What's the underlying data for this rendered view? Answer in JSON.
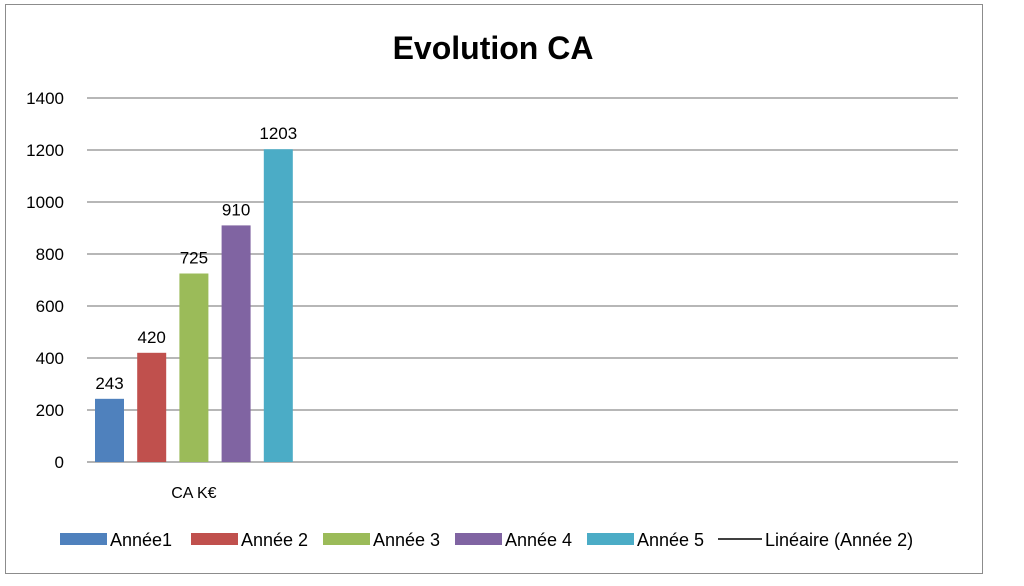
{
  "chart_data": {
    "type": "bar",
    "title": "Evolution CA",
    "categories": [
      "CA K€"
    ],
    "series": [
      {
        "name": "Année1",
        "values": [
          243
        ],
        "color": "#4F81BD"
      },
      {
        "name": "Année 2",
        "values": [
          420
        ],
        "color": "#C0504D"
      },
      {
        "name": "Année 3",
        "values": [
          725
        ],
        "color": "#9BBB59"
      },
      {
        "name": "Année 4",
        "values": [
          910
        ],
        "color": "#8064A2"
      },
      {
        "name": "Année 5",
        "values": [
          1203
        ],
        "color": "#4BACC6"
      }
    ],
    "trendline": {
      "label": "Linéaire (Année 2)",
      "color": "#000000"
    },
    "ylim": [
      0,
      1400
    ],
    "yticks": [
      0,
      200,
      400,
      600,
      800,
      1000,
      1200,
      1400
    ],
    "grid": true,
    "legend": "bottom",
    "xlabel": "",
    "ylabel": ""
  }
}
